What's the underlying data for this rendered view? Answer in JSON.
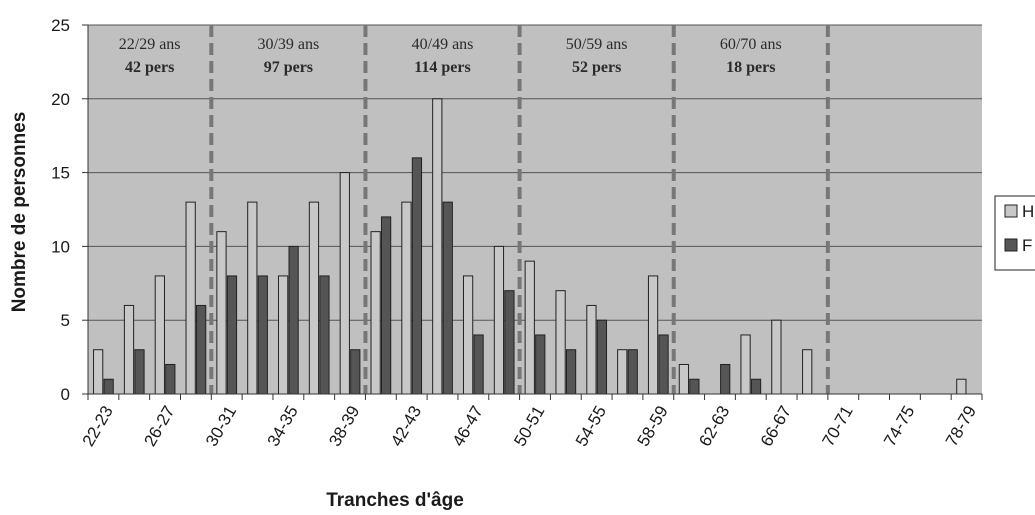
{
  "chart_data": {
    "type": "bar",
    "title": "",
    "xlabel": "Tranches d'âge",
    "ylabel": "Nombre de personnes",
    "ylim": [
      0,
      25
    ],
    "yticks": [
      "0",
      "5",
      "10",
      "15",
      "20",
      "25"
    ],
    "grid": true,
    "legend_position": "right",
    "categories": [
      "22-23",
      "24-25",
      "26-27",
      "28-29",
      "30-31",
      "32-33",
      "34-35",
      "36-37",
      "38-39",
      "40-41",
      "42-43",
      "44-45",
      "46-47",
      "48-49",
      "50-51",
      "52-53",
      "54-55",
      "56-57",
      "58-59",
      "60-61",
      "62-63",
      "64-65",
      "66-67",
      "68-69",
      "70-71",
      "72-73",
      "74-75",
      "76-77",
      "78-79"
    ],
    "x_tick_labels": [
      "22-23",
      "26-27",
      "30-31",
      "34-35",
      "38-39",
      "42-43",
      "46-47",
      "50-51",
      "54-55",
      "58-59",
      "62-63",
      "66-67",
      "70-71",
      "74-75",
      "78-79"
    ],
    "series": [
      {
        "name": "H",
        "color": "#c8c8c8",
        "values": [
          3,
          6,
          8,
          13,
          11,
          13,
          8,
          13,
          15,
          11,
          13,
          20,
          8,
          10,
          9,
          7,
          6,
          3,
          8,
          2,
          0,
          4,
          5,
          3,
          0,
          0,
          0,
          0,
          1
        ]
      },
      {
        "name": "F",
        "color": "#555555",
        "values": [
          1,
          3,
          2,
          6,
          8,
          8,
          10,
          8,
          3,
          12,
          16,
          13,
          4,
          7,
          4,
          3,
          5,
          3,
          4,
          1,
          2,
          1,
          0,
          0,
          0,
          0,
          0,
          0,
          0
        ]
      }
    ],
    "group_separators_after": [
      "28-29",
      "38-39",
      "48-49",
      "58-59",
      "68-69"
    ],
    "groups": [
      {
        "label": "22/29 ans",
        "count": "42 pers"
      },
      {
        "label": "30/39 ans",
        "count": "97 pers"
      },
      {
        "label": "40/49 ans",
        "count": "114 pers"
      },
      {
        "label": "50/59 ans",
        "count": "52 pers"
      },
      {
        "label": "60/70 ans",
        "count": "18 pers"
      }
    ],
    "colors": {
      "plot_background": "#c0c0c0",
      "gridline": "#555555",
      "separator": "#777777"
    }
  }
}
